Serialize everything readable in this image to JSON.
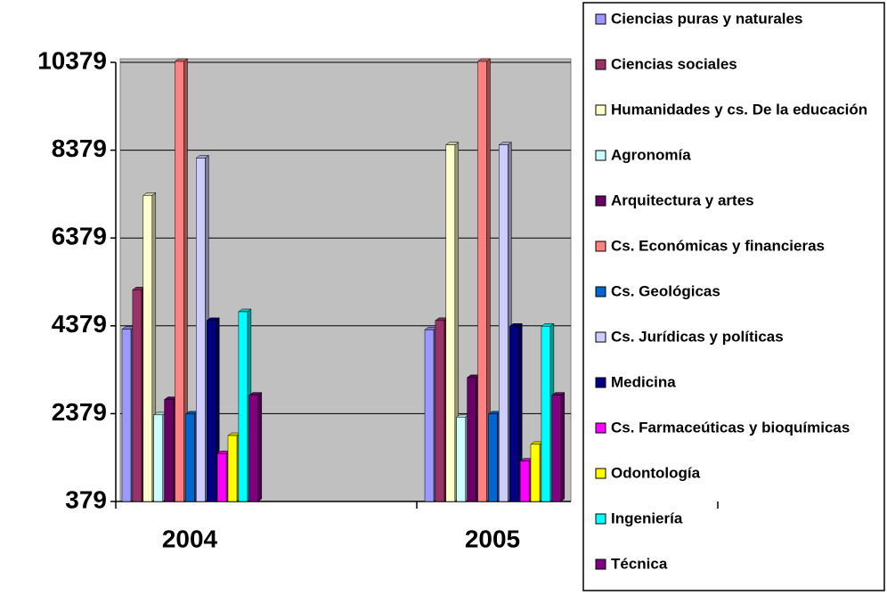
{
  "chart_data": {
    "type": "bar",
    "categories": [
      "2004",
      "2005"
    ],
    "ylim": [
      379,
      10379
    ],
    "yticks": [
      379,
      2379,
      4379,
      6379,
      8379,
      10379
    ],
    "grid": true,
    "legend": "right",
    "series": [
      {
        "name": "Ciencias puras y naturales",
        "color": "#9999FF",
        "values": [
          4300,
          4290
        ]
      },
      {
        "name": "Ciencias sociales",
        "color": "#993366",
        "values": [
          5200,
          4500
        ]
      },
      {
        "name": "Humanidades y cs. De la educación",
        "color": "#FFFFCC",
        "values": [
          7350,
          8500
        ]
      },
      {
        "name": "Agronomía",
        "color": "#CCFFFF",
        "values": [
          2350,
          2300
        ]
      },
      {
        "name": "Arquitectura y artes",
        "color": "#660066",
        "values": [
          2700,
          3200
        ]
      },
      {
        "name": "Cs. Económicas y financieras",
        "color": "#FF8080",
        "values": [
          10400,
          10400
        ]
      },
      {
        "name": "Cs. Geológicas",
        "color": "#0066CC",
        "values": [
          2370,
          2370
        ]
      },
      {
        "name": "Cs. Jurídicas y políticas",
        "color": "#CCCCFF",
        "values": [
          8200,
          8500
        ]
      },
      {
        "name": "Medicina",
        "color": "#000080",
        "values": [
          4500,
          4370
        ]
      },
      {
        "name": "Cs. Farmaceúticas y bioquímicas",
        "color": "#FF00FF",
        "values": [
          1470,
          1300
        ]
      },
      {
        "name": "Odontología",
        "color": "#FFFF00",
        "values": [
          1880,
          1680
        ]
      },
      {
        "name": "Ingeniería",
        "color": "#00FFFF",
        "values": [
          4700,
          4370
        ]
      },
      {
        "name": "Técnica",
        "color": "#800080",
        "values": [
          2800,
          2800
        ]
      }
    ]
  }
}
